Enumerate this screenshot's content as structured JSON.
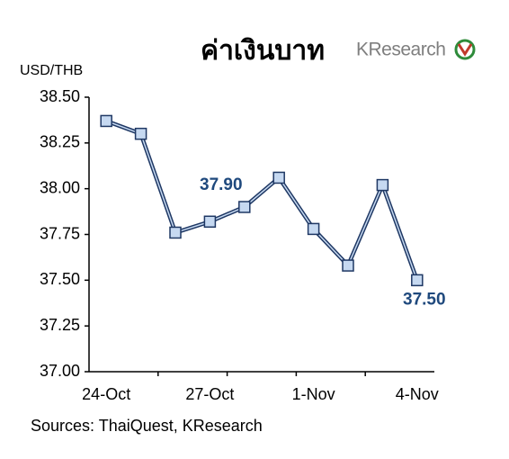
{
  "chart_data": {
    "type": "line",
    "title": "ค่าเงินบาท",
    "logo": "KResearch",
    "y_label": "USD/THB",
    "source": "Sources: ThaiQuest, KResearch",
    "categories": [
      "24-Oct",
      null,
      null,
      "27-Oct",
      null,
      null,
      "1-Nov",
      null,
      null,
      "4-Nov"
    ],
    "series": [
      {
        "name": "USD/THB",
        "color": "#1f3864",
        "marker_color": "#c6d9f1",
        "values": [
          38.37,
          38.3,
          37.76,
          37.82,
          37.9,
          38.06,
          37.78,
          37.58,
          38.02,
          37.5
        ],
        "value_labels": [
          null,
          null,
          null,
          null,
          "37.90",
          null,
          null,
          null,
          null,
          "37.50"
        ],
        "label_color": "#1f497d"
      }
    ],
    "ylim": [
      37.0,
      38.5
    ],
    "yticks": [
      {
        "value": 37.0,
        "label": "37.00"
      },
      {
        "value": 37.25,
        "label": "37.25"
      },
      {
        "value": 37.5,
        "label": "37.50"
      },
      {
        "value": 37.75,
        "label": "37.75"
      },
      {
        "value": 38.0,
        "label": "38.00"
      },
      {
        "value": 38.25,
        "label": "38.25"
      },
      {
        "value": 38.5,
        "label": "38.50"
      }
    ],
    "grid": false
  }
}
